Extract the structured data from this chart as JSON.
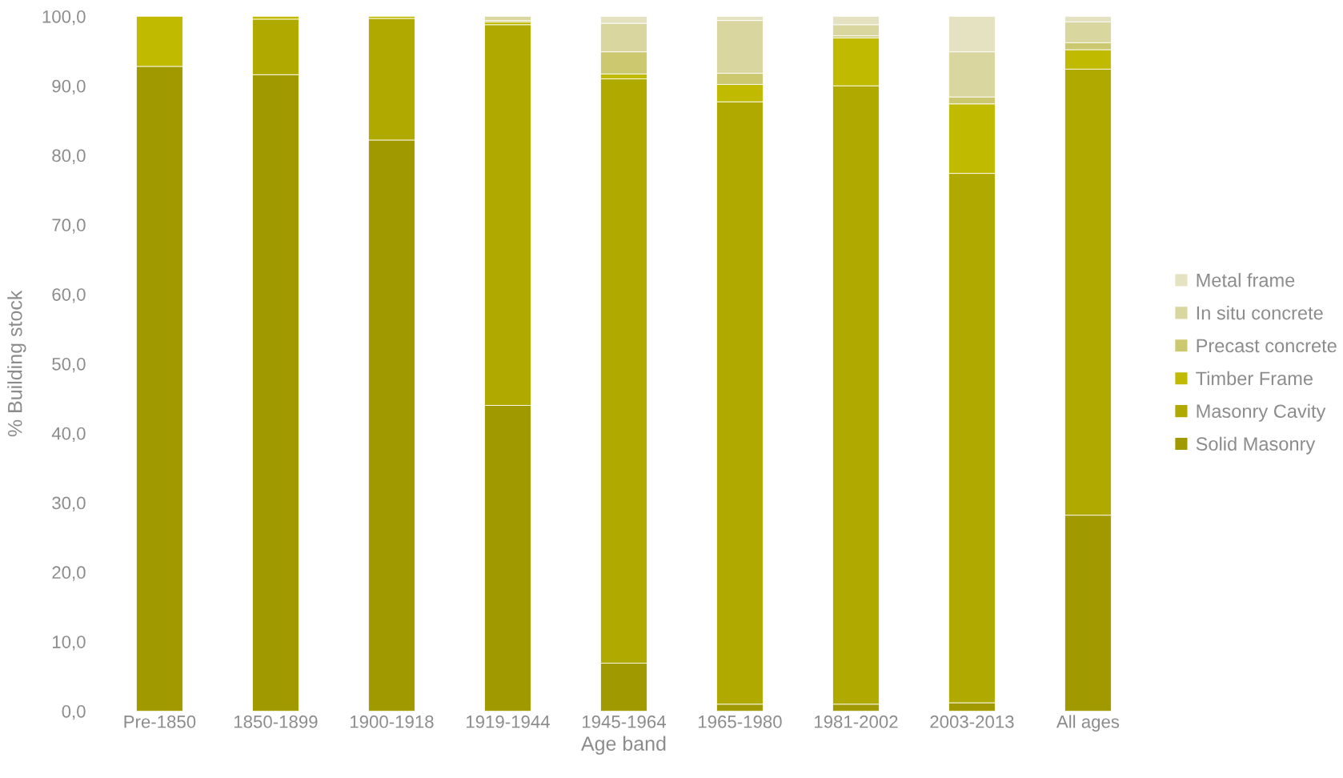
{
  "chart_data": {
    "type": "bar",
    "stacked": true,
    "xlabel": "Age band",
    "ylabel": "% Building stock",
    "categories": [
      "Pre-1850",
      "1850-1899",
      "1900-1918",
      "1919-1944",
      "1945-1964",
      "1965-1980",
      "1981-2002",
      "2003-2013",
      "All ages"
    ],
    "series": [
      {
        "name": "Solid Masonry",
        "color": "#a09a00",
        "values": [
          92.8,
          91.6,
          82.2,
          44.0,
          6.9,
          1.0,
          1.0,
          1.2,
          28.2
        ]
      },
      {
        "name": "Masonry Cavity",
        "color": "#b0aa00",
        "values": [
          0,
          8.0,
          17.5,
          54.8,
          84.1,
          86.7,
          89.0,
          76.2,
          64.2
        ]
      },
      {
        "name": "Timber Frame",
        "color": "#c0ba00",
        "values": [
          7.2,
          0.4,
          0.3,
          0.4,
          0.7,
          2.5,
          6.9,
          10.0,
          2.8
        ]
      },
      {
        "name": "Precast concrete",
        "color": "#ccc870",
        "values": [
          0,
          0,
          0,
          0.2,
          3.2,
          1.6,
          0.3,
          1.0,
          1.0
        ]
      },
      {
        "name": "In situ concrete",
        "color": "#d9d6a0",
        "values": [
          0,
          0,
          0,
          0.6,
          4.1,
          7.6,
          1.6,
          6.5,
          3.0
        ]
      },
      {
        "name": "Metal frame",
        "color": "#e4e2c0",
        "values": [
          0,
          0,
          0,
          0,
          1.0,
          0.6,
          1.2,
          5.1,
          0.8
        ]
      }
    ],
    "ylim": [
      0,
      100
    ],
    "yticks": [
      {
        "value": 0,
        "label": "0,0"
      },
      {
        "value": 10,
        "label": "10,0"
      },
      {
        "value": 20,
        "label": "20,0"
      },
      {
        "value": 30,
        "label": "30,0"
      },
      {
        "value": 40,
        "label": "40,0"
      },
      {
        "value": 50,
        "label": "50,0"
      },
      {
        "value": 60,
        "label": "60,0"
      },
      {
        "value": 70,
        "label": "70,0"
      },
      {
        "value": 80,
        "label": "80,0"
      },
      {
        "value": 90,
        "label": "90,0"
      },
      {
        "value": 100,
        "label": "100,0"
      }
    ],
    "grid": false,
    "legend": "right"
  }
}
